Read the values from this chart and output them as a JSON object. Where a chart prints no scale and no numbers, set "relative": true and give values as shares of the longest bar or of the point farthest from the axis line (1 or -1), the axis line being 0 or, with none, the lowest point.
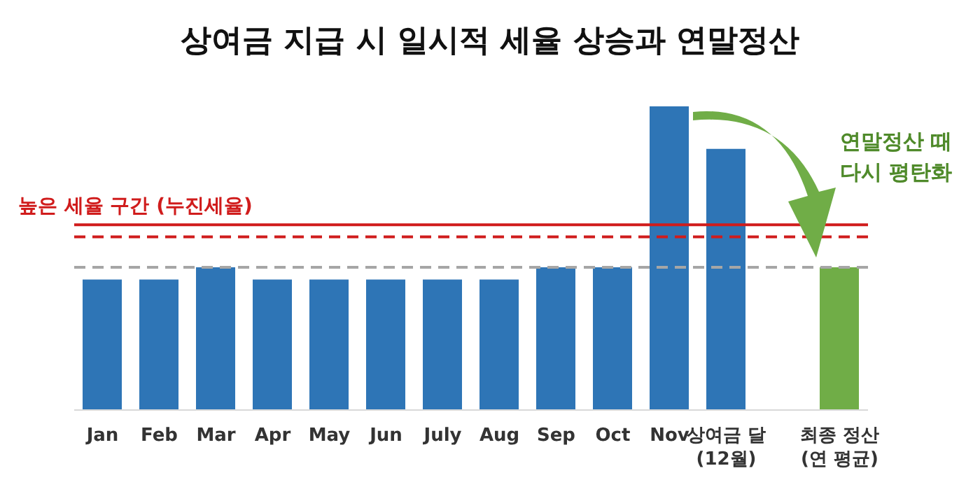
{
  "chart_data": {
    "type": "bar",
    "title": "상여금 지급 시 일시적 세율 상승과 연말정산",
    "categories": [
      "Jan",
      "Feb",
      "Mar",
      "Apr",
      "May",
      "Jun",
      "July",
      "Aug",
      "Sep",
      "Oct",
      "Nov",
      "상여금 달\n(12월)",
      null,
      "최종 정산\n(연 평균)"
    ],
    "values": [
      0.43,
      0.43,
      0.47,
      0.43,
      0.43,
      0.43,
      0.43,
      0.43,
      0.47,
      0.47,
      1,
      0.86,
      null,
      0.47
    ],
    "colors": [
      "#2e75b6",
      "#2e75b6",
      "#2e75b6",
      "#2e75b6",
      "#2e75b6",
      "#2e75b6",
      "#2e75b6",
      "#2e75b6",
      "#2e75b6",
      "#2e75b6",
      "#2e75b6",
      "#2e75b6",
      "#2e75b6",
      "#70ad47"
    ],
    "relative": true,
    "ref_lines": [
      {
        "axis": "y",
        "value": 0.61,
        "label": "높은 세율 구간 (누진세율)",
        "color": "#d01c1c",
        "line_style": "solid"
      },
      {
        "axis": "y",
        "value": 0.57,
        "label": null,
        "color": "#d01c1c",
        "line_style": "dashed"
      },
      {
        "axis": "y",
        "value": 0.47,
        "label": null,
        "color": "#a6a6a6",
        "line_style": "dashed"
      }
    ],
    "annotations": [
      "연말정산 때\n다시 평탄화"
    ],
    "grid": false
  }
}
